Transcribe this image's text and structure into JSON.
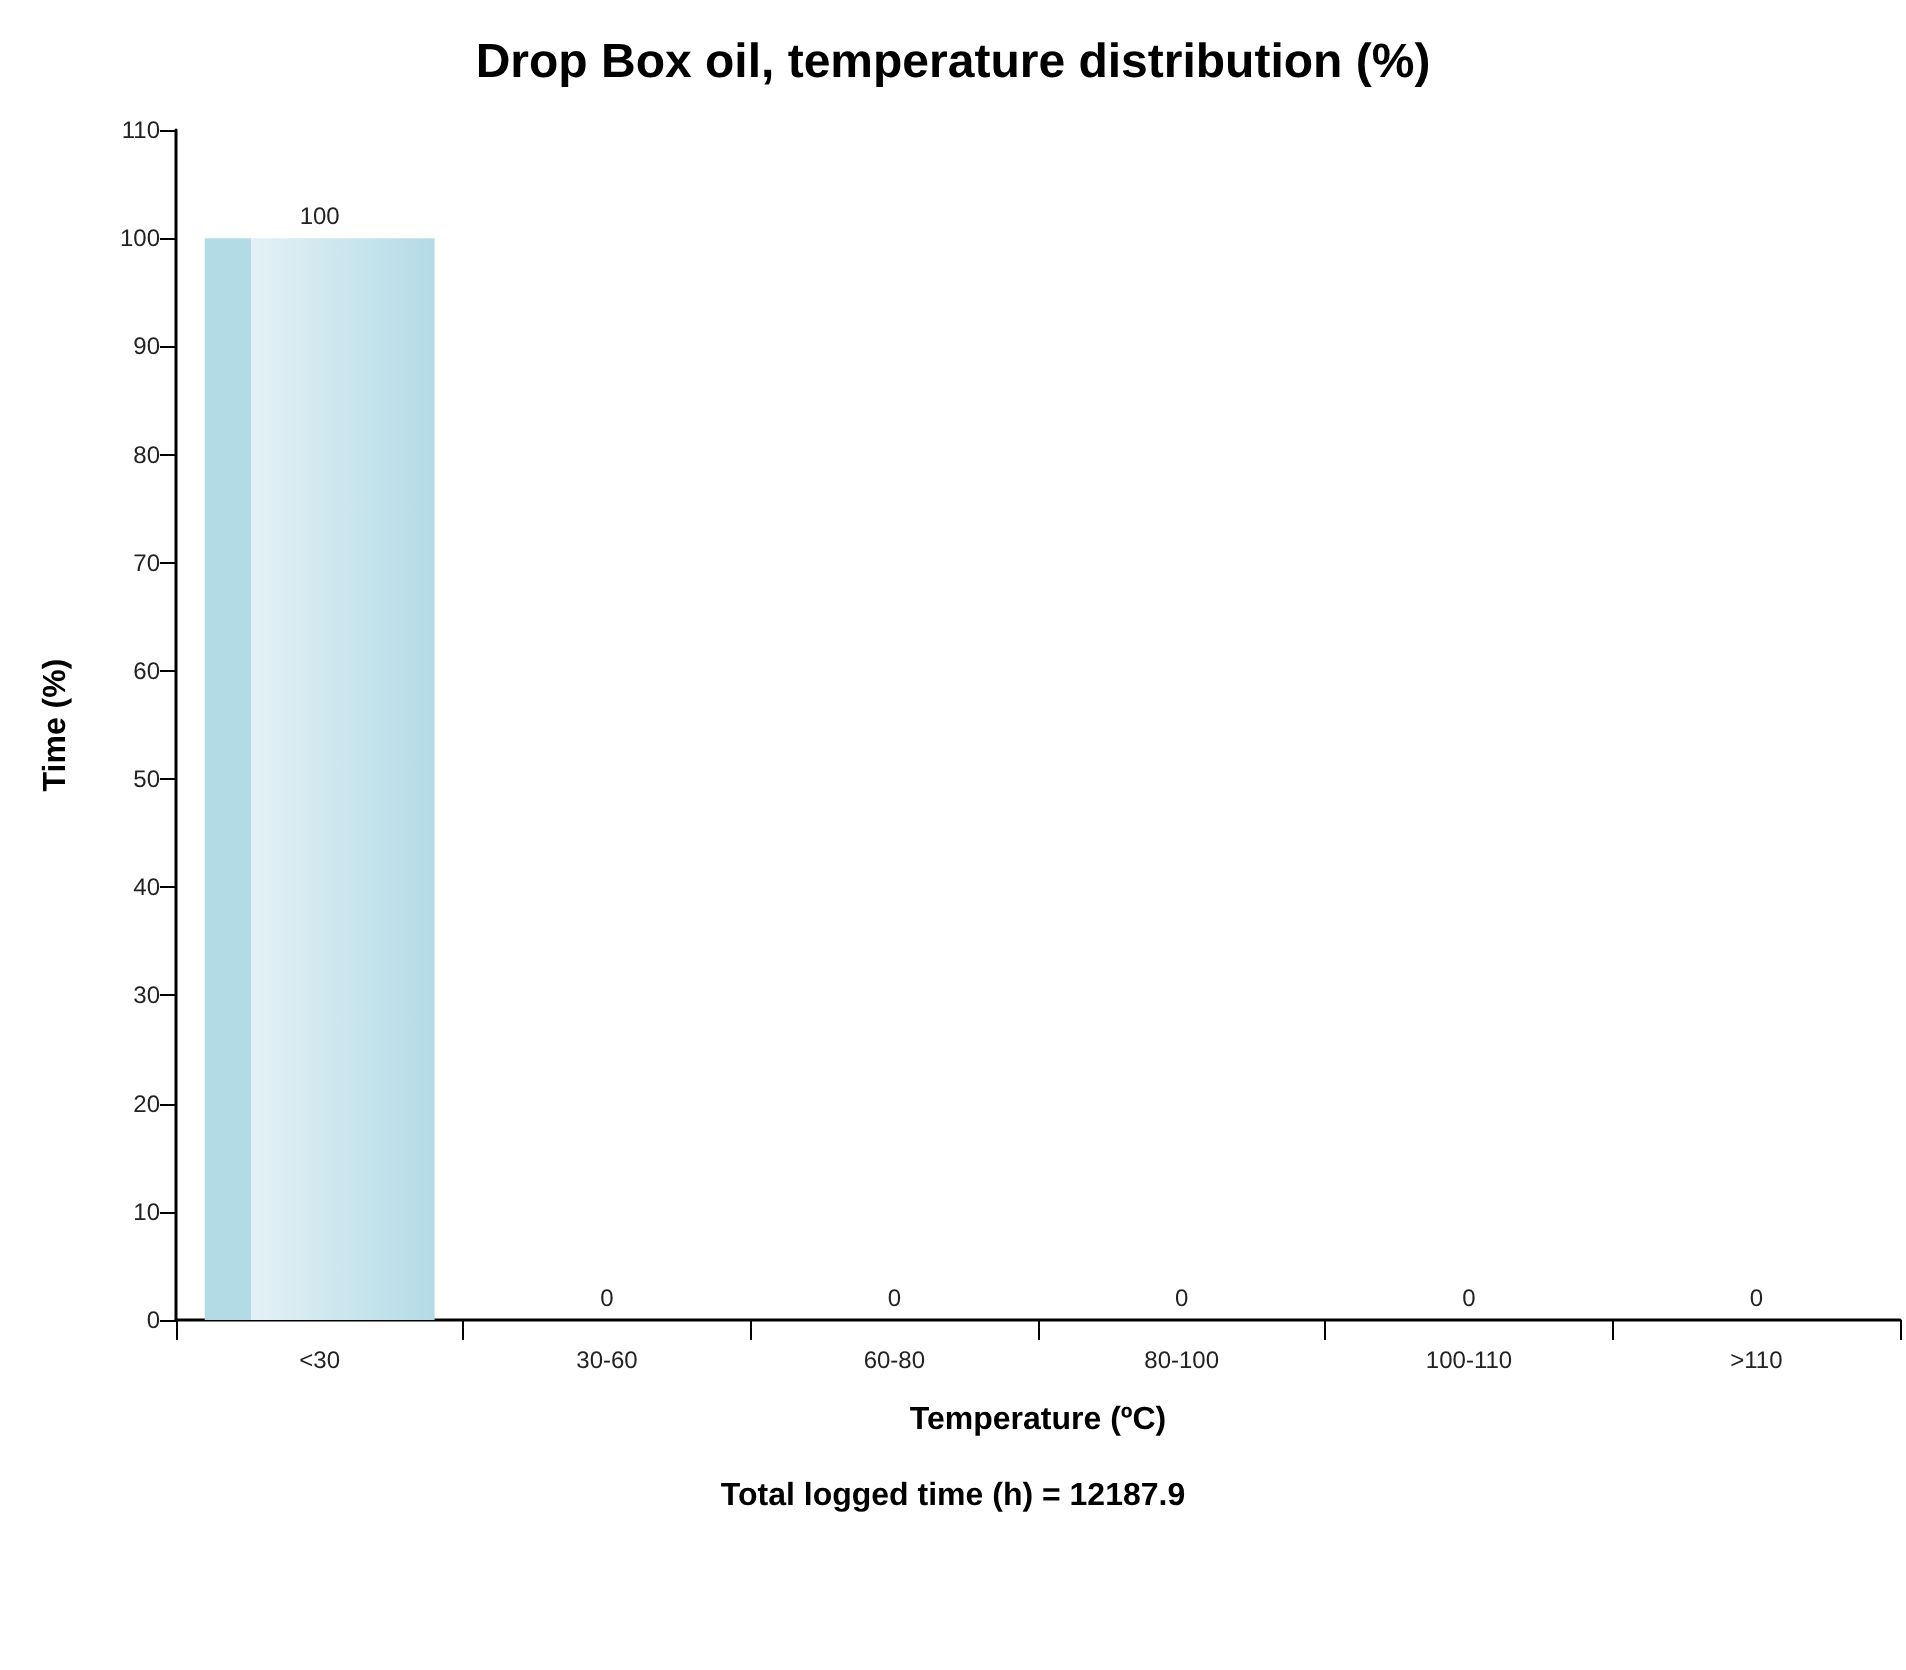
{
  "chart_data": {
    "type": "bar",
    "title": "Drop Box oil, temperature distribution (%)",
    "xlabel": "Temperature (ºC)",
    "ylabel": "Time (%)",
    "annotations": [
      "Total logged time (h) = 12187.9"
    ],
    "categories": [
      "<30",
      "30-60",
      "60-80",
      "80-100",
      "100-110",
      ">110"
    ],
    "values": [
      100,
      0,
      0,
      0,
      0,
      0
    ],
    "color": "#b3dbe6",
    "ylim": [
      0,
      110
    ],
    "yticks": [
      0,
      10,
      20,
      30,
      40,
      50,
      60,
      70,
      80,
      90,
      100,
      110
    ],
    "grid": false,
    "data_labels": true
  }
}
